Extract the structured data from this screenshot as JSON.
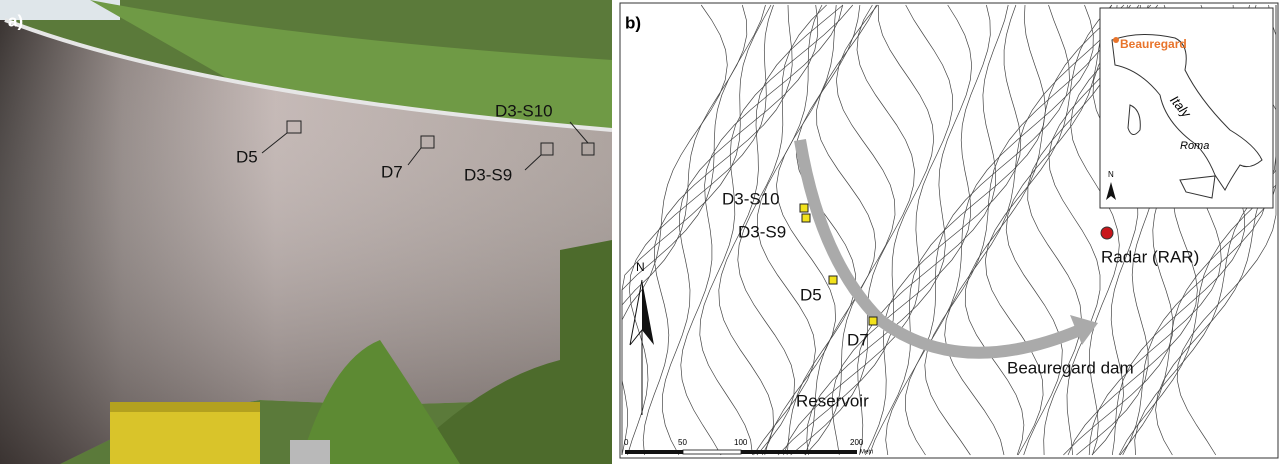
{
  "panel_a": {
    "label": "a)",
    "targets": [
      "D5",
      "D7",
      "D3-S10",
      "D3-S9"
    ]
  },
  "panel_b": {
    "label": "b)",
    "targets": [
      "D3-S10",
      "D3-S9",
      "D5",
      "D7"
    ],
    "radar": "Radar (RAR)",
    "north": "N",
    "reservoir": "Reservoir",
    "dam": "Beauregard dam",
    "inset": {
      "site": "Beauregard",
      "country": "Italy",
      "city": "Roma",
      "north": "N"
    },
    "scale": {
      "ticks": [
        "0",
        "50",
        "100",
        "200"
      ],
      "unit": "Metri"
    }
  }
}
